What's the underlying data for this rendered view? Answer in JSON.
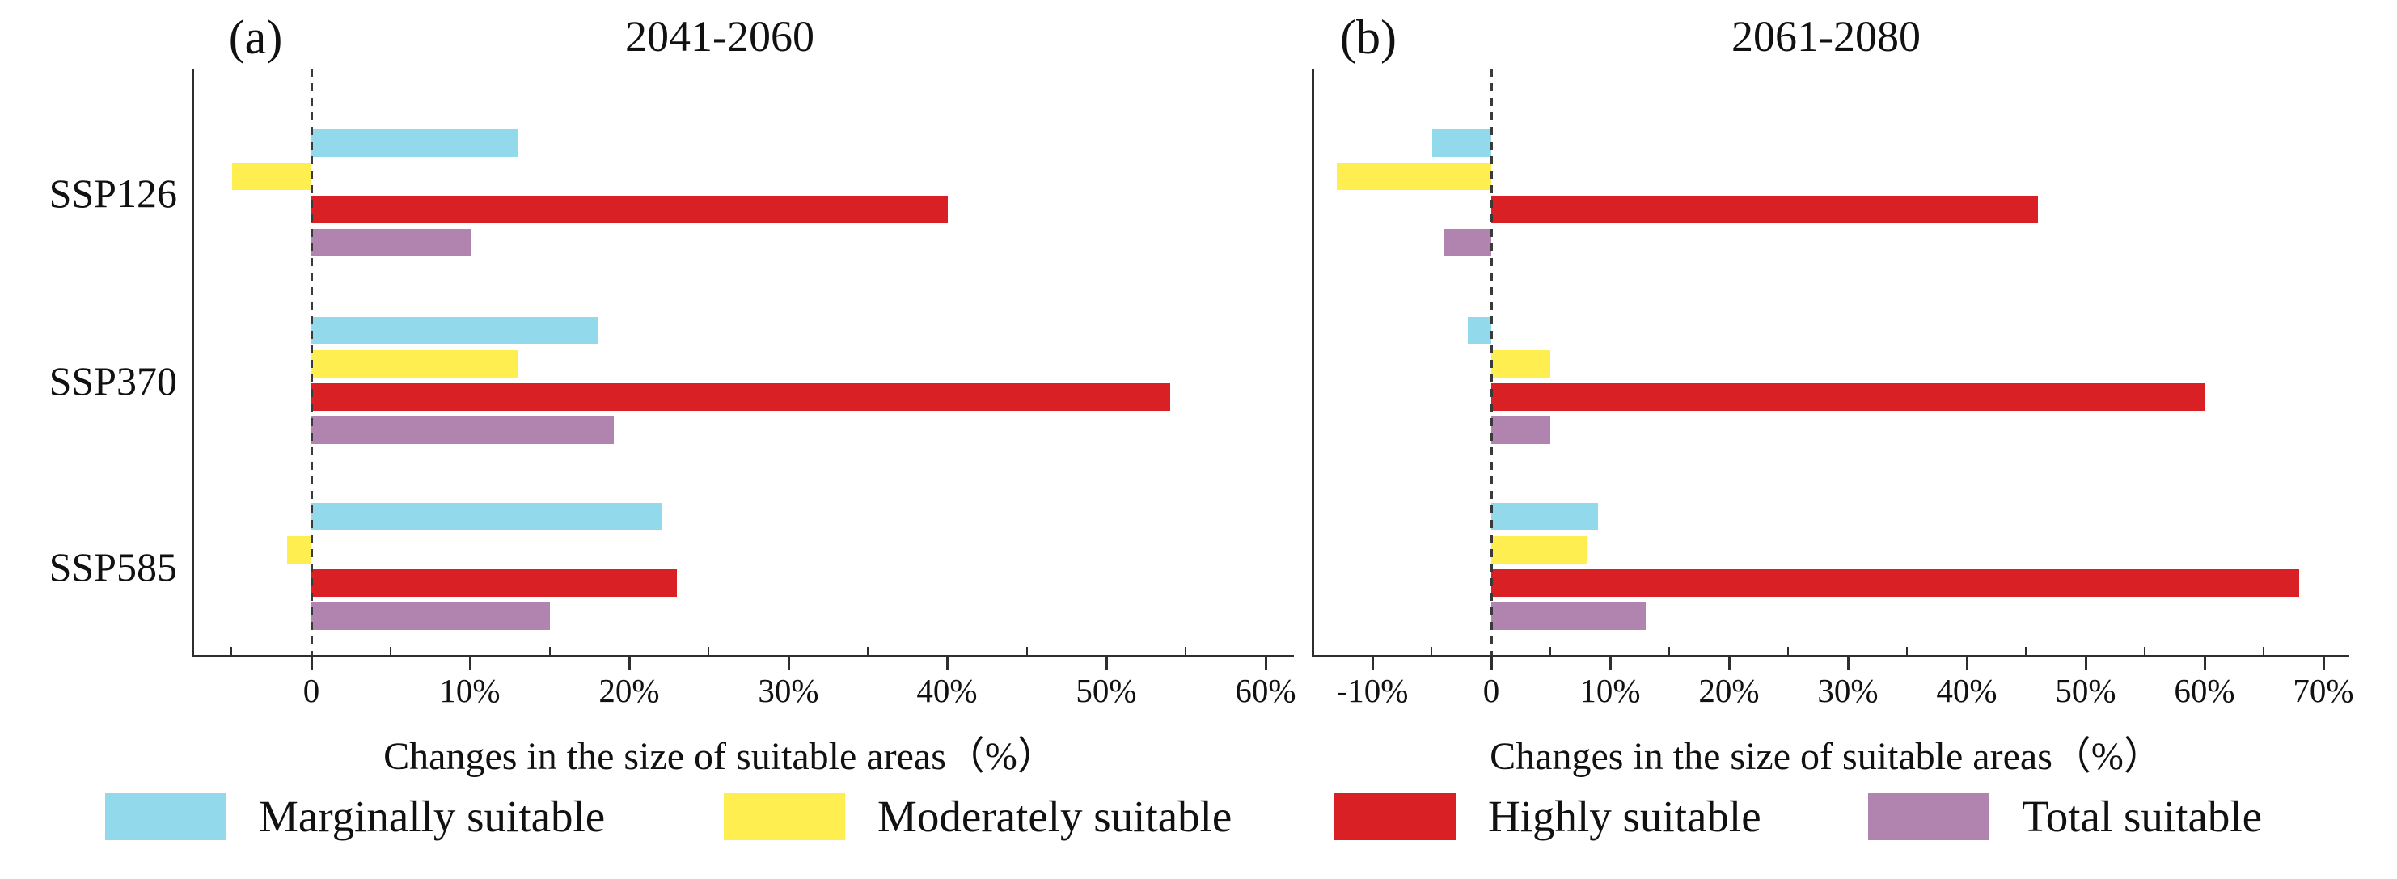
{
  "legend": {
    "items": [
      {
        "label": "Marginally suitable",
        "color": "#93D9EC"
      },
      {
        "label": "Moderately suitable",
        "color": "#FFEE4F"
      },
      {
        "label": "Highly suitable",
        "color": "#D92025"
      },
      {
        "label": "Total suitable",
        "color": "#B183AF"
      }
    ]
  },
  "chart_data": [
    {
      "type": "bar",
      "orientation": "horizontal",
      "panel_label": "(a)",
      "title": "2041-2060",
      "xlabel": "Changes in the size of suitable areas（%）",
      "categories": [
        "SSP126",
        "SSP370",
        "SSP585"
      ],
      "series": [
        {
          "name": "Marginally suitable",
          "color": "#93D9EC",
          "values": [
            13,
            18,
            22
          ]
        },
        {
          "name": "Moderately suitable",
          "color": "#FFEE4F",
          "values": [
            -5,
            13,
            -1.5
          ]
        },
        {
          "name": "Highly suitable",
          "color": "#D92025",
          "values": [
            40,
            54,
            23
          ]
        },
        {
          "name": "Total suitable",
          "color": "#B183AF",
          "values": [
            10,
            19,
            15
          ]
        }
      ],
      "xlim": [
        -7.5,
        61.8
      ],
      "xticks": [
        0,
        10,
        20,
        30,
        40,
        50,
        60
      ],
      "xtick_labels": [
        "0",
        "10%",
        "20%",
        "30%",
        "40%",
        "50%",
        "60%"
      ],
      "minor_xticks": [
        -5,
        5,
        15,
        25,
        35,
        45,
        55
      ],
      "zero_line": "dashed",
      "grid": false,
      "show_category_labels": true,
      "legend_position": "bottom"
    },
    {
      "type": "bar",
      "orientation": "horizontal",
      "panel_label": "(b)",
      "title": "2061-2080",
      "xlabel": "Changes in the size of suitable areas（%）",
      "categories": [
        "SSP126",
        "SSP370",
        "SSP585"
      ],
      "series": [
        {
          "name": "Marginally suitable",
          "color": "#93D9EC",
          "values": [
            -5,
            -2,
            9
          ]
        },
        {
          "name": "Moderately suitable",
          "color": "#FFEE4F",
          "values": [
            -13,
            5,
            8
          ]
        },
        {
          "name": "Highly suitable",
          "color": "#D92025",
          "values": [
            46,
            60,
            68
          ]
        },
        {
          "name": "Total suitable",
          "color": "#B183AF",
          "values": [
            -4,
            5,
            13
          ]
        }
      ],
      "xlim": [
        -15.1,
        72.2
      ],
      "xticks": [
        -10,
        0,
        10,
        20,
        30,
        40,
        50,
        60,
        70
      ],
      "xtick_labels": [
        "-10%",
        "0",
        "10%",
        "20%",
        "30%",
        "40%",
        "50%",
        "60%",
        "70%"
      ],
      "minor_xticks": [
        -15,
        -5,
        5,
        15,
        25,
        35,
        45,
        55,
        65
      ],
      "zero_line": "dashed",
      "grid": false,
      "show_category_labels": false,
      "legend_position": "bottom"
    }
  ]
}
